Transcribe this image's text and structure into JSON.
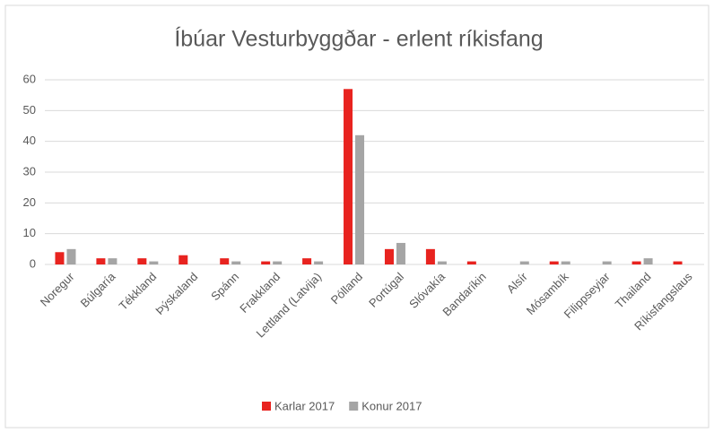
{
  "chart_data": {
    "type": "bar",
    "title": "Íbúar Vesturbyggðar - erlent ríkisfang",
    "categories": [
      "Noregur",
      "Búlgaría",
      "Tékkland",
      "Þýskaland",
      "Spánn",
      "Frakkland",
      "Lettland (Latvija)",
      "Pólland",
      "Portúgal",
      "Slóvakía",
      "Bandaríkin",
      "Alsír",
      "Mósambík",
      "Filippseyjar",
      "Thailand",
      "Ríkisfangslaus"
    ],
    "series": [
      {
        "name": "Karlar 2017",
        "color": "#e8231f",
        "values": [
          4,
          2,
          2,
          3,
          2,
          1,
          2,
          57,
          5,
          5,
          1,
          0,
          1,
          0,
          1,
          1
        ]
      },
      {
        "name": "Konur 2017",
        "color": "#a5a5a5",
        "values": [
          5,
          2,
          1,
          0,
          1,
          1,
          1,
          42,
          7,
          1,
          0,
          1,
          1,
          1,
          2,
          0
        ]
      }
    ],
    "ylim": [
      0,
      60
    ],
    "yticks": [
      0,
      10,
      20,
      30,
      40,
      50,
      60
    ],
    "grid": true,
    "legend": "bottom"
  }
}
